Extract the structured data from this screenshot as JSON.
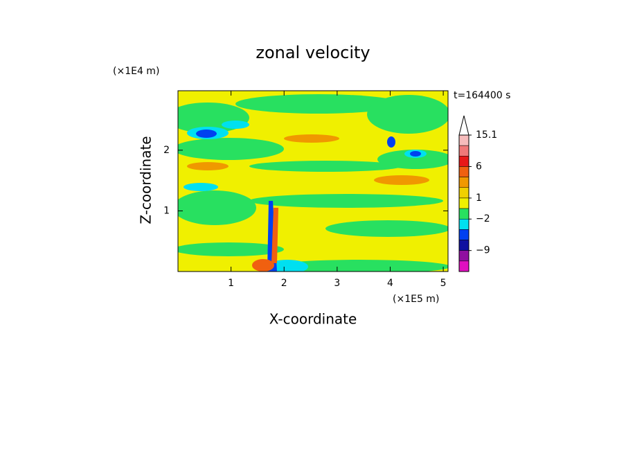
{
  "chart_data": {
    "type": "contour",
    "title": "zonal velocity",
    "x_label": "X-coordinate",
    "y_label": "Z-coordinate",
    "x_unit": "(×1E5 m)",
    "y_unit": "(×1E4 m)",
    "time_label": "t=164400 s",
    "xlim": [
      0,
      5.09
    ],
    "ylim": [
      0,
      2.98
    ],
    "xticks": [
      1,
      2,
      3,
      4,
      5
    ],
    "yticks": [
      1,
      2
    ],
    "colorbar": {
      "levels": [
        15.1,
        12,
        9,
        6,
        4,
        2,
        1,
        0,
        -2,
        -4,
        -6,
        -9,
        -12,
        -15
      ],
      "colors": [
        "#f6bcbc",
        "#f07878",
        "#e81818",
        "#f06010",
        "#f09800",
        "#f0d000",
        "#f0f000",
        "#28e060",
        "#00e0f0",
        "#0040f0",
        "#1010a0",
        "#9010a0",
        "#e010c0"
      ],
      "ticks": [
        15.1,
        6,
        1,
        {
          "value": -2,
          "label": "−2"
        },
        {
          "value": -9,
          "label": "−9"
        }
      ]
    }
  }
}
